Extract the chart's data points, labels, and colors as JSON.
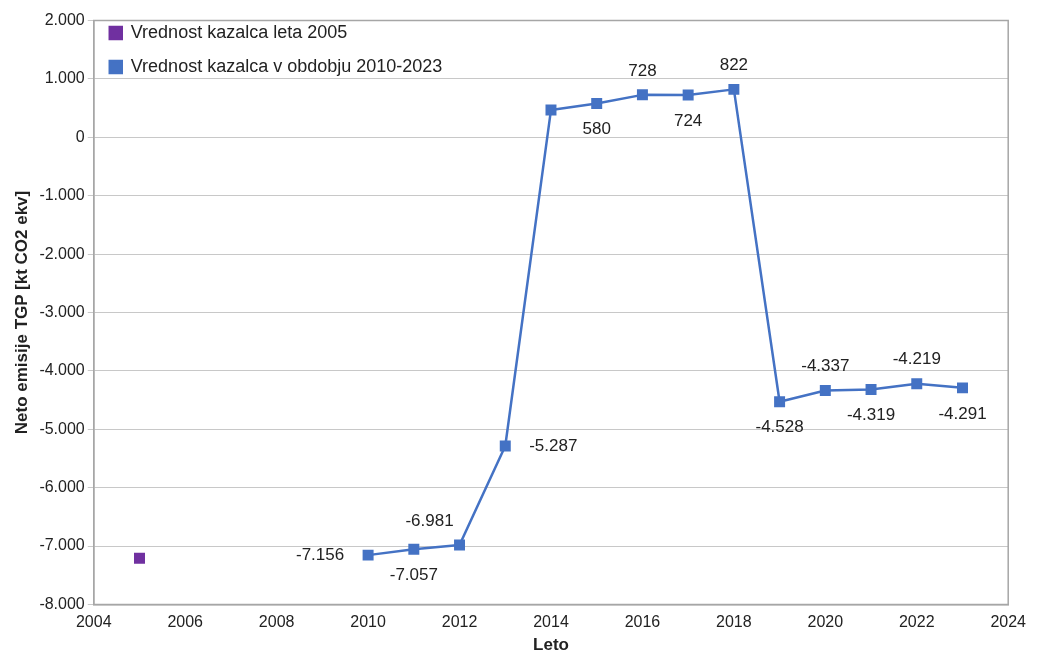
{
  "chart_data": {
    "type": "line",
    "xlabel": "Leto",
    "ylabel": "Neto emisije TGP [kt CO2 ekv]",
    "xlim": [
      2004,
      2024
    ],
    "xticks": [
      2004,
      2006,
      2008,
      2010,
      2012,
      2014,
      2016,
      2018,
      2020,
      2022,
      2024
    ],
    "ylim": [
      -8000,
      2000
    ],
    "yticks": [
      {
        "value": -8000,
        "label": "-8.000"
      },
      {
        "value": -7000,
        "label": "-7.000"
      },
      {
        "value": -6000,
        "label": "-6.000"
      },
      {
        "value": -5000,
        "label": "-5.000"
      },
      {
        "value": -4000,
        "label": "-4.000"
      },
      {
        "value": -3000,
        "label": "-3.000"
      },
      {
        "value": -2000,
        "label": "-2.000"
      },
      {
        "value": -1000,
        "label": "-1.000"
      },
      {
        "value": 0,
        "label": "0"
      },
      {
        "value": 1000,
        "label": "1.000"
      },
      {
        "value": 2000,
        "label": "2.000"
      }
    ],
    "grid": "y",
    "legend": "top left",
    "marker": "square",
    "series": [
      {
        "name": "Vrednost kazalca leta 2005",
        "color": "#7030a0",
        "x": [
          2005
        ],
        "values": [
          -7210
        ]
      },
      {
        "name": "Vrednost kazalca v obdobju 2010-2023",
        "color": "#4472c4",
        "x": [
          2010,
          2011,
          2012,
          2013,
          2014,
          2015,
          2016,
          2017,
          2018,
          2019,
          2020,
          2021,
          2022,
          2023
        ],
        "values": [
          -7156,
          -7057,
          -6981,
          -5287,
          470,
          580,
          728,
          724,
          822,
          -4528,
          -4337,
          -4319,
          -4219,
          -4291
        ],
        "value_labels": [
          "-7.156",
          "-7.057",
          "-6.981",
          "-5.287",
          null,
          "580",
          "728",
          "724",
          "822",
          "-4.528",
          "-4.337",
          "-4.319",
          "-4.219",
          "-4.291"
        ]
      }
    ]
  }
}
